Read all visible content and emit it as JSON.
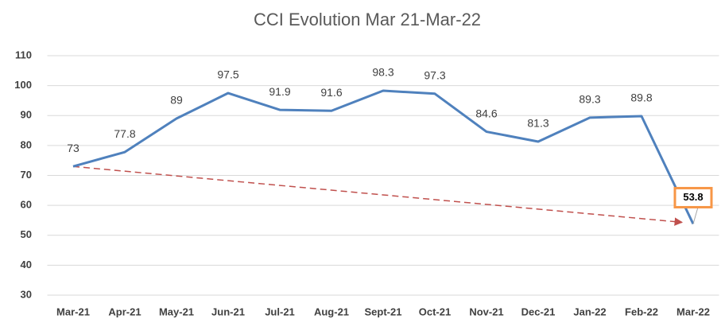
{
  "chart_data": {
    "type": "line",
    "title": "CCI Evolution Mar 21-Mar-22",
    "categories": [
      "Mar-21",
      "Apr-21",
      "May-21",
      "Jun-21",
      "Jul-21",
      "Aug-21",
      "Sept-21",
      "Oct-21",
      "Nov-21",
      "Dec-21",
      "Jan-22",
      "Feb-22",
      "Mar-22"
    ],
    "series": [
      {
        "name": "CCI",
        "color": "#4f81bd",
        "values": [
          73,
          77.8,
          89,
          97.5,
          91.9,
          91.6,
          98.3,
          97.3,
          84.6,
          81.3,
          89.3,
          89.8,
          53.8
        ]
      }
    ],
    "ylim": [
      30,
      110
    ],
    "yticks": [
      30,
      40,
      50,
      60,
      70,
      80,
      90,
      100,
      110
    ],
    "grid": true
  }
}
